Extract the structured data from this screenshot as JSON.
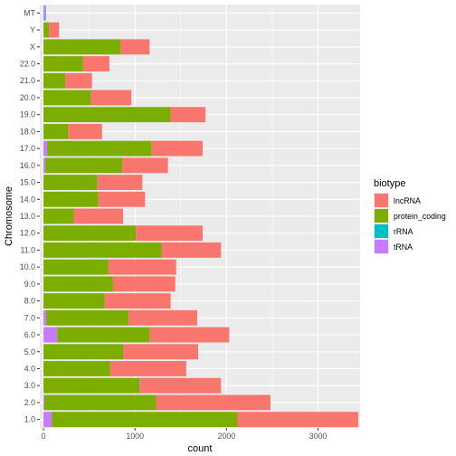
{
  "chart_data": {
    "type": "bar",
    "orientation": "horizontal",
    "stacked": true,
    "xlabel": "count",
    "ylabel": "Chromosome",
    "xlim": [
      -40,
      3460
    ],
    "x_ticks": [
      0,
      1000,
      2000,
      3000
    ],
    "x_tick_labels": [
      "0",
      "1000",
      "2000",
      "3000"
    ],
    "grid": true,
    "legend_position": "right",
    "legend_title": "biotype",
    "categories": [
      "1.0",
      "2.0",
      "3.0",
      "4.0",
      "5.0",
      "6.0",
      "7.0",
      "8.0",
      "9.0",
      "10.0",
      "11.0",
      "12.0",
      "13.0",
      "14.0",
      "15.0",
      "16.0",
      "17.0",
      "18.0",
      "19.0",
      "20.0",
      "21.0",
      "22.0",
      "X",
      "Y",
      "MT"
    ],
    "series": [
      {
        "name": "tRNA",
        "color": "#C77CFF",
        "values": [
          90,
          10,
          0,
          0,
          0,
          150,
          30,
          0,
          0,
          0,
          0,
          0,
          0,
          0,
          0,
          20,
          40,
          0,
          0,
          0,
          0,
          0,
          0,
          0,
          22
        ]
      },
      {
        "name": "rRNA",
        "color": "#00BFC4",
        "values": [
          0,
          0,
          0,
          0,
          0,
          0,
          0,
          0,
          0,
          0,
          0,
          0,
          0,
          0,
          0,
          0,
          0,
          0,
          0,
          0,
          0,
          0,
          0,
          0,
          2
        ]
      },
      {
        "name": "protein_coding",
        "color": "#7CAE00",
        "values": [
          2030,
          1220,
          1050,
          730,
          870,
          1010,
          900,
          670,
          760,
          710,
          1290,
          1010,
          330,
          600,
          590,
          840,
          1140,
          270,
          1390,
          520,
          240,
          430,
          840,
          60,
          0
        ]
      },
      {
        "name": "lncRNA",
        "color": "#F8766D",
        "values": [
          1320,
          1250,
          890,
          830,
          820,
          870,
          750,
          720,
          680,
          740,
          650,
          730,
          540,
          510,
          490,
          500,
          560,
          370,
          380,
          440,
          290,
          290,
          320,
          110,
          0
        ]
      }
    ],
    "legend_order": [
      "lncRNA",
      "protein_coding",
      "rRNA",
      "tRNA"
    ]
  }
}
